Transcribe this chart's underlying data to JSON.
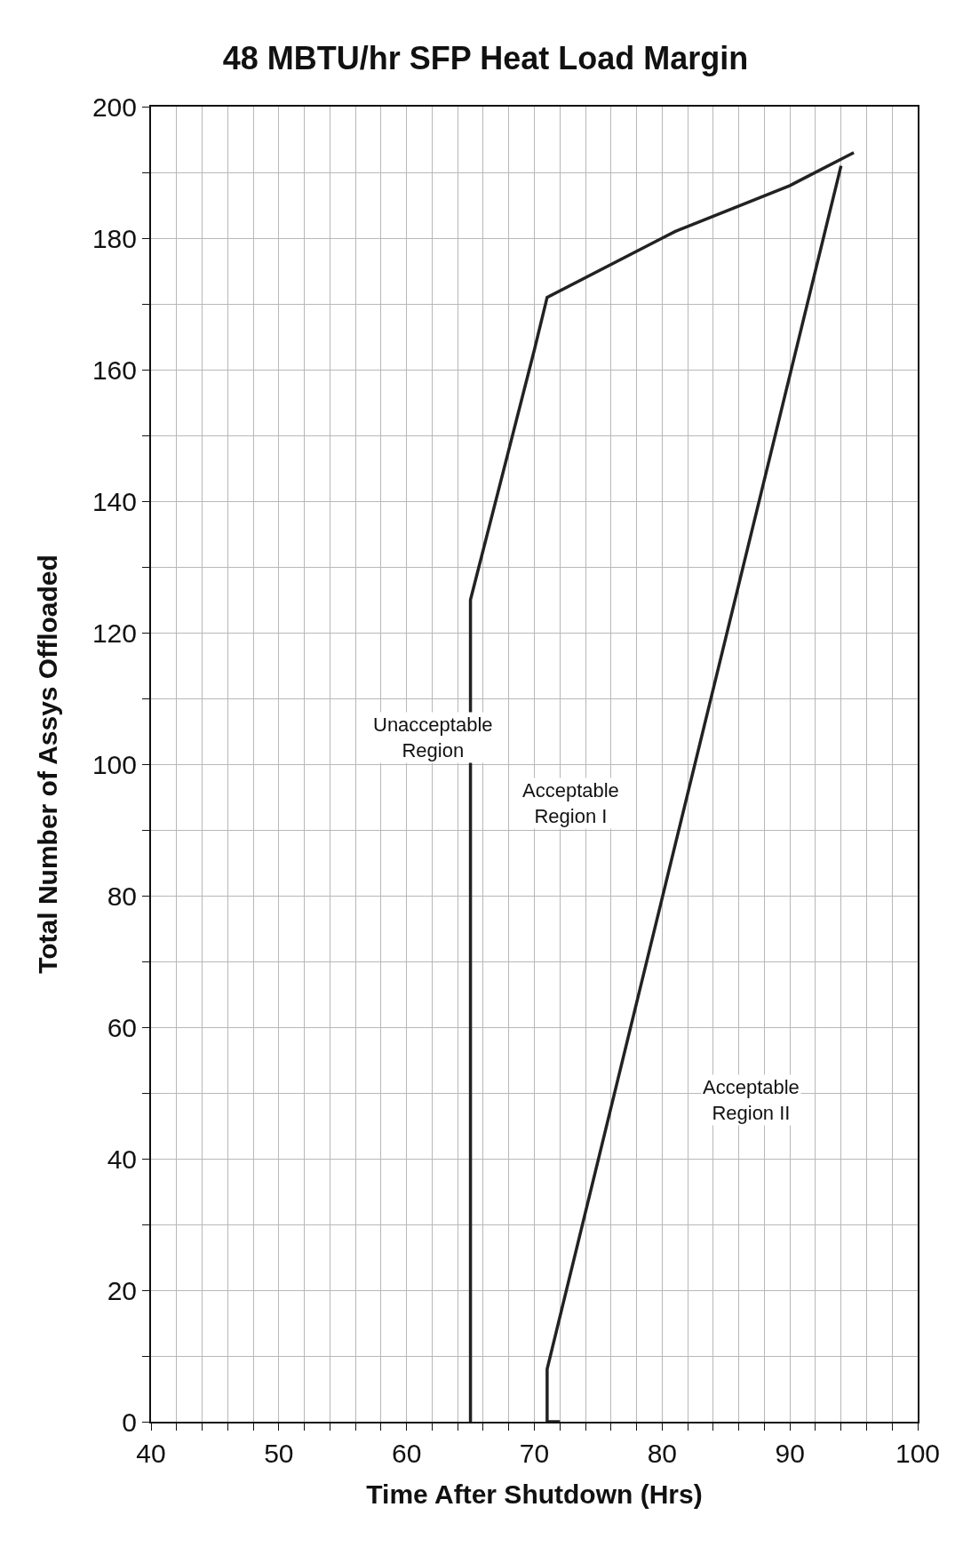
{
  "chart_data": {
    "type": "line",
    "title": "48 MBTU/hr SFP Heat Load Margin",
    "xlabel": "Time After Shutdown (Hrs)",
    "ylabel": "Total Number of Assys Offloaded",
    "x": [
      65,
      65,
      70,
      71,
      80,
      81,
      90,
      91,
      95
    ],
    "series": [
      {
        "color": "#222222",
        "values": [
          0,
          125,
          163,
          171,
          180,
          181,
          188,
          189,
          193
        ]
      },
      {
        "color": "#222222",
        "x": [
          72,
          71,
          71,
          94
        ],
        "values": [
          0,
          0,
          8,
          191
        ]
      }
    ],
    "xlim": [
      40,
      100
    ],
    "ylim": [
      0,
      200
    ],
    "xticks": [
      40,
      {
        "value": 42,
        "label": null
      },
      {
        "value": 44,
        "label": null
      },
      {
        "value": 46,
        "label": null
      },
      {
        "value": 48,
        "label": null
      },
      50,
      {
        "value": 52,
        "label": null
      },
      {
        "value": 54,
        "label": null
      },
      {
        "value": 56,
        "label": null
      },
      {
        "value": 58,
        "label": null
      },
      60,
      {
        "value": 62,
        "label": null
      },
      {
        "value": 64,
        "label": null
      },
      {
        "value": 66,
        "label": null
      },
      {
        "value": 68,
        "label": null
      },
      70,
      {
        "value": 72,
        "label": null
      },
      {
        "value": 74,
        "label": null
      },
      {
        "value": 76,
        "label": null
      },
      {
        "value": 78,
        "label": null
      },
      80,
      {
        "value": 82,
        "label": null
      },
      {
        "value": 84,
        "label": null
      },
      {
        "value": 86,
        "label": null
      },
      {
        "value": 88,
        "label": null
      },
      90,
      {
        "value": 92,
        "label": null
      },
      {
        "value": 94,
        "label": null
      },
      {
        "value": 96,
        "label": null
      },
      {
        "value": 98,
        "label": null
      },
      100
    ],
    "yticks": [
      0,
      {
        "value": 10,
        "label": null
      },
      20,
      {
        "value": 30,
        "label": null
      },
      40,
      {
        "value": 50,
        "label": null
      },
      60,
      {
        "value": 70,
        "label": null
      },
      80,
      {
        "value": 90,
        "label": null
      },
      100,
      {
        "value": 110,
        "label": null
      },
      120,
      {
        "value": 130,
        "label": null
      },
      140,
      {
        "value": 150,
        "label": null
      },
      160,
      {
        "value": 170,
        "label": null
      },
      180,
      {
        "value": 190,
        "label": null
      },
      200
    ],
    "grid": true,
    "marker": "none",
    "line_style": "solid",
    "annotations": [
      "Unacceptable\nRegion",
      "Acceptable\nRegion I",
      "Acceptable\nRegion II"
    ]
  }
}
